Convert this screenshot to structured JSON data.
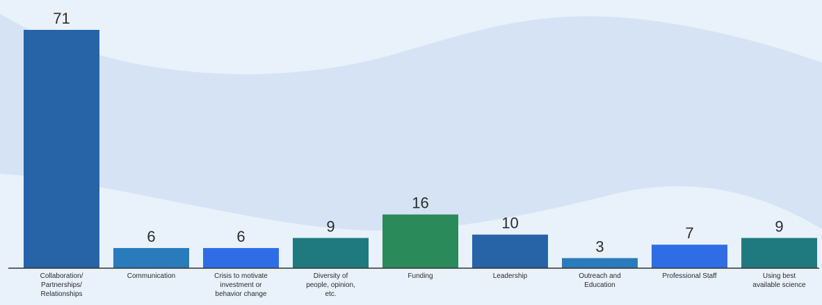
{
  "chart_data": {
    "type": "bar",
    "categories": [
      [
        "Collaboration/",
        "Partnerships/",
        "Relationships"
      ],
      [
        "Communication"
      ],
      [
        "Crisis to motivate",
        "investment or",
        "behavior change"
      ],
      [
        "Diversity of",
        "people, opinion,",
        "etc."
      ],
      [
        "Funding"
      ],
      [
        "Leadership"
      ],
      [
        "Outreach and",
        "Education"
      ],
      [
        "Professional Staff"
      ],
      [
        "Using best",
        "available science"
      ]
    ],
    "values": [
      71,
      6,
      6,
      9,
      16,
      10,
      3,
      7,
      9
    ],
    "bar_colors": [
      "#2763a7",
      "#2a7bbb",
      "#2f6de6",
      "#1f7a80",
      "#2a8a5a",
      "#2763a7",
      "#2a7bbb",
      "#2f6de6",
      "#1f7a80"
    ],
    "title": "",
    "xlabel": "",
    "ylabel": "",
    "ylim": [
      0,
      71
    ],
    "grid": false,
    "legend": "none"
  },
  "colors": {
    "background": "#e9f1fb",
    "wave": "#d3e1f4",
    "axis": "#333333"
  }
}
